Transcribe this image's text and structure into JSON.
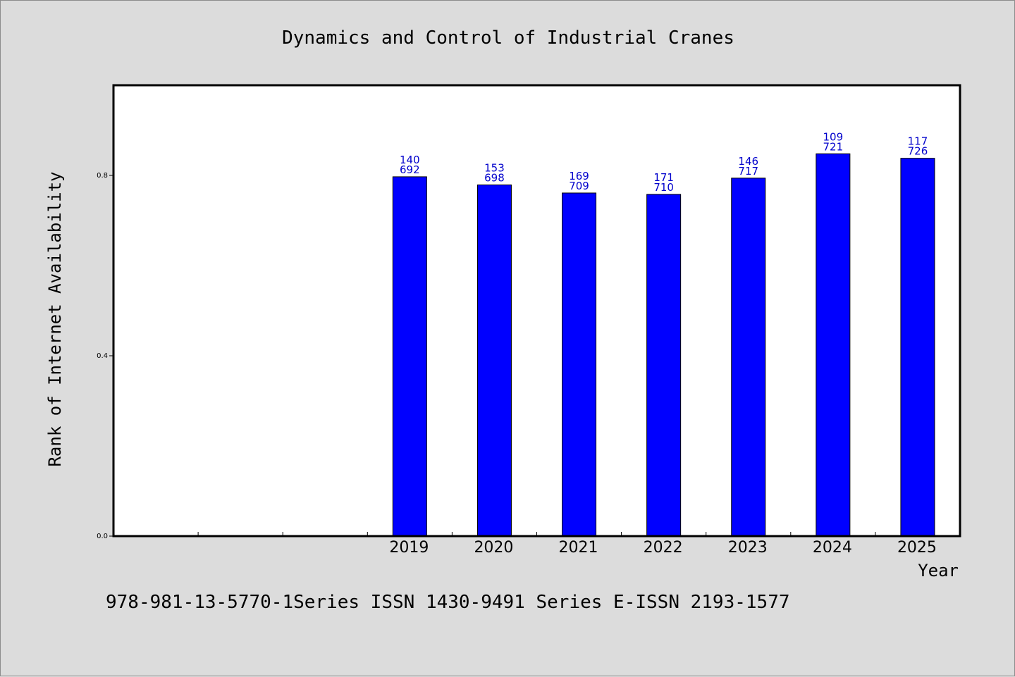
{
  "footnote": "978-981-13-5770-1Series ISSN 1430-9491 Series E-ISSN 2193-1577",
  "colors": {
    "background": "#dcdcdc",
    "plot_background": "#ffffff",
    "bar": "#0000ff",
    "data_label": "#0000cc"
  },
  "chart_data": {
    "type": "bar",
    "title": "Dynamics and Control of Industrial Cranes",
    "xlabel": "Year",
    "ylabel": "Rank of Internet Availability",
    "categories": [
      "",
      "",
      "",
      "2019",
      "2020",
      "2021",
      "2022",
      "2023",
      "2024",
      "2025"
    ],
    "values": [
      null,
      null,
      null,
      0.797,
      0.779,
      0.761,
      0.758,
      0.794,
      0.848,
      0.838
    ],
    "data_labels": [
      null,
      null,
      null,
      [
        "140",
        "692"
      ],
      [
        "153",
        "698"
      ],
      [
        "169",
        "709"
      ],
      [
        "171",
        "710"
      ],
      [
        "146",
        "717"
      ],
      [
        "109",
        "721"
      ],
      [
        "117",
        "726"
      ]
    ],
    "ylim": [
      0,
      1.0
    ],
    "yticks": [
      0.0,
      0.4,
      0.8
    ],
    "ytick_labels": [
      "0.0",
      "0.4",
      "0.8"
    ],
    "grid": false,
    "legend": "none"
  }
}
